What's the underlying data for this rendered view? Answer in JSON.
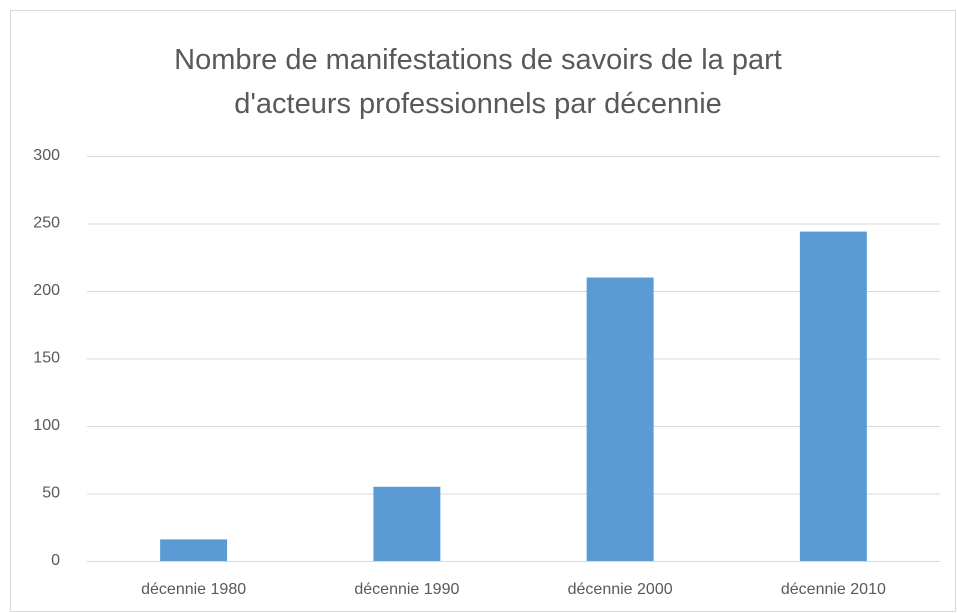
{
  "chart_data": {
    "type": "bar",
    "title": "Nombre de manifestations de savoirs de la part d'acteurs professionnels par décennie",
    "categories": [
      "décennie 1980",
      "décennie 1990",
      "décennie 2000",
      "décennie 2010"
    ],
    "values": [
      16,
      55,
      210,
      244
    ],
    "color": "#5b9bd5",
    "ylim": [
      0,
      300
    ],
    "yticks": [
      0,
      50,
      100,
      150,
      200,
      250,
      300
    ],
    "grid": true
  }
}
